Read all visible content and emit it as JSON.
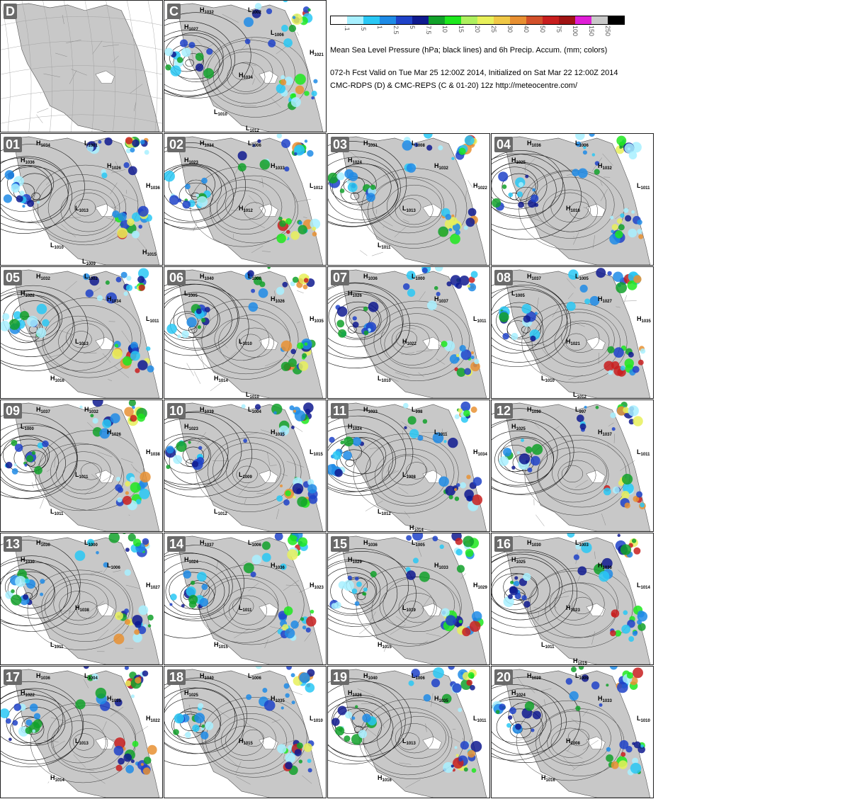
{
  "colorbar": {
    "colors": [
      "#ffffff",
      "#a8f0ff",
      "#29c8f5",
      "#1e8be6",
      "#1f42c8",
      "#0f1a8f",
      "#12a12a",
      "#1ee81e",
      "#aef05e",
      "#e8f05a",
      "#f0c846",
      "#e89032",
      "#d2502a",
      "#c81e1e",
      "#a01414",
      "#e01ed6",
      "#c8c8c8",
      "#000000"
    ],
    "ticks": [
      ".1",
      ".5",
      "1",
      "2.5",
      "5",
      "7.5",
      "10",
      "15",
      "20",
      "25",
      "30",
      "40",
      "50",
      "75",
      "100",
      "150",
      "250"
    ]
  },
  "title_line": "Mean Sea Level Pressure (hPa; black lines) and 6h Precip. Accum. (mm; colors)",
  "valid_line": "072-h Fcst Valid on Tue Mar 25 12:00Z 2014, Initialized on Sat Mar 22 12:00Z 2014",
  "source_line": "CMC-RDPS (D) & CMC-REPS (C & 01-20) 12z http://meteocentre.com/",
  "panels": [
    {
      "label": "D",
      "kind": "domain",
      "centers": []
    },
    {
      "label": "C",
      "kind": "forecast",
      "centers": [
        [
          "H",
          "1032"
        ],
        [
          "L",
          "1002"
        ],
        [
          "H",
          "1027"
        ],
        [
          "L",
          "1006"
        ],
        [
          "H",
          "1021"
        ],
        [
          "H",
          "1034"
        ],
        [
          "L",
          "1010"
        ],
        [
          "L",
          "1012"
        ]
      ]
    },
    {
      "label": "01",
      "kind": "forecast",
      "centers": [
        [
          "H",
          "1034"
        ],
        [
          "L",
          "1001"
        ],
        [
          "H",
          "1036"
        ],
        [
          "H",
          "1026"
        ],
        [
          "H",
          "1036"
        ],
        [
          "L",
          "1013"
        ],
        [
          "L",
          "1010"
        ],
        [
          "L",
          "1009"
        ],
        [
          "H",
          "1015"
        ]
      ]
    },
    {
      "label": "02",
      "kind": "forecast",
      "centers": [
        [
          "H",
          "1034"
        ],
        [
          "L",
          "1006"
        ],
        [
          "H",
          "1023"
        ],
        [
          "H",
          "1033"
        ],
        [
          "L",
          "1012"
        ],
        [
          "H",
          "1012"
        ]
      ]
    },
    {
      "label": "03",
      "kind": "forecast",
      "centers": [
        [
          "H",
          "1031"
        ],
        [
          "L",
          "1008"
        ],
        [
          "H",
          "1024"
        ],
        [
          "H",
          "1032"
        ],
        [
          "H",
          "1022"
        ],
        [
          "L",
          "1013"
        ],
        [
          "L",
          "1011"
        ]
      ]
    },
    {
      "label": "04",
      "kind": "forecast",
      "centers": [
        [
          "H",
          "1036"
        ],
        [
          "L",
          "1006"
        ],
        [
          "H",
          "1025"
        ],
        [
          "H",
          "1032"
        ],
        [
          "L",
          "1011"
        ],
        [
          "H",
          "1016"
        ]
      ]
    },
    {
      "label": "05",
      "kind": "forecast",
      "centers": [
        [
          "H",
          "1032"
        ],
        [
          "L",
          "1002"
        ],
        [
          "H",
          "1022"
        ],
        [
          "H",
          "1034"
        ],
        [
          "L",
          "1011"
        ],
        [
          "L",
          "1013"
        ],
        [
          "H",
          "1016"
        ]
      ]
    },
    {
      "label": "06",
      "kind": "forecast",
      "centers": [
        [
          "H",
          "1040"
        ],
        [
          "L",
          "1000"
        ],
        [
          "L",
          "1005"
        ],
        [
          "H",
          "1026"
        ],
        [
          "H",
          "1035"
        ],
        [
          "L",
          "1010"
        ],
        [
          "H",
          "1014"
        ],
        [
          "L",
          "1010"
        ]
      ]
    },
    {
      "label": "07",
      "kind": "forecast",
      "centers": [
        [
          "H",
          "1036"
        ],
        [
          "L",
          "1000"
        ],
        [
          "H",
          "1026"
        ],
        [
          "H",
          "1037"
        ],
        [
          "L",
          "1011"
        ],
        [
          "H",
          "1022"
        ],
        [
          "L",
          "1010"
        ]
      ]
    },
    {
      "label": "08",
      "kind": "forecast",
      "centers": [
        [
          "H",
          "1037"
        ],
        [
          "L",
          "1005"
        ],
        [
          "L",
          "1005"
        ],
        [
          "H",
          "1027"
        ],
        [
          "H",
          "1035"
        ],
        [
          "H",
          "1021"
        ],
        [
          "L",
          "1010"
        ],
        [
          "L",
          "1012"
        ]
      ]
    },
    {
      "label": "09",
      "kind": "forecast",
      "centers": [
        [
          "H",
          "1037"
        ],
        [
          "H",
          "1032"
        ],
        [
          "L",
          "1000"
        ],
        [
          "H",
          "1026"
        ],
        [
          "H",
          "1038"
        ],
        [
          "L",
          "1011"
        ],
        [
          "L",
          "1011"
        ]
      ]
    },
    {
      "label": "10",
      "kind": "forecast",
      "centers": [
        [
          "H",
          "1039"
        ],
        [
          "L",
          "1004"
        ],
        [
          "H",
          "1023"
        ],
        [
          "H",
          "1035"
        ],
        [
          "L",
          "1015"
        ],
        [
          "L",
          "1009"
        ],
        [
          "L",
          "1012"
        ]
      ]
    },
    {
      "label": "11",
      "kind": "forecast",
      "centers": [
        [
          "H",
          "1033"
        ],
        [
          "L",
          "998"
        ],
        [
          "H",
          "1024"
        ],
        [
          "L",
          "1011"
        ],
        [
          "H",
          "1034"
        ],
        [
          "L",
          "1008"
        ],
        [
          "L",
          "1012"
        ],
        [
          "H",
          "1014"
        ]
      ]
    },
    {
      "label": "12",
      "kind": "forecast",
      "centers": [
        [
          "H",
          "1030"
        ],
        [
          "L",
          "997"
        ],
        [
          "H",
          "1025"
        ],
        [
          "H",
          "1037"
        ],
        [
          "L",
          "1011"
        ]
      ]
    },
    {
      "label": "13",
      "kind": "forecast",
      "centers": [
        [
          "H",
          "1030"
        ],
        [
          "L",
          "1000"
        ],
        [
          "H",
          "1030"
        ],
        [
          "L",
          "1006"
        ],
        [
          "H",
          "1027"
        ],
        [
          "H",
          "1038"
        ],
        [
          "L",
          "1011"
        ]
      ]
    },
    {
      "label": "14",
      "kind": "forecast",
      "centers": [
        [
          "H",
          "1037"
        ],
        [
          "L",
          "1006"
        ],
        [
          "H",
          "1024"
        ],
        [
          "H",
          "1036"
        ],
        [
          "H",
          "1023"
        ],
        [
          "L",
          "1011"
        ],
        [
          "H",
          "1015"
        ]
      ]
    },
    {
      "label": "15",
      "kind": "forecast",
      "centers": [
        [
          "H",
          "1036"
        ],
        [
          "L",
          "1005"
        ],
        [
          "H",
          "1029"
        ],
        [
          "H",
          "1033"
        ],
        [
          "H",
          "1029"
        ],
        [
          "L",
          "1019"
        ],
        [
          "H",
          "1015"
        ]
      ]
    },
    {
      "label": "16",
      "kind": "forecast",
      "centers": [
        [
          "H",
          "1030"
        ],
        [
          "L",
          "1003"
        ],
        [
          "H",
          "1025"
        ],
        [
          "H",
          "1036"
        ],
        [
          "L",
          "1014"
        ],
        [
          "H",
          "1023"
        ],
        [
          "L",
          "1011"
        ],
        [
          "H",
          "1015"
        ]
      ]
    },
    {
      "label": "17",
      "kind": "forecast",
      "centers": [
        [
          "H",
          "1036"
        ],
        [
          "L",
          "1004"
        ],
        [
          "H",
          "1022"
        ],
        [
          "H",
          "1035"
        ],
        [
          "H",
          "1022"
        ],
        [
          "L",
          "1013"
        ],
        [
          "H",
          "1014"
        ]
      ]
    },
    {
      "label": "18",
      "kind": "forecast",
      "centers": [
        [
          "H",
          "1040"
        ],
        [
          "L",
          "1006"
        ],
        [
          "H",
          "1025"
        ],
        [
          "H",
          "1035"
        ],
        [
          "L",
          "1010"
        ],
        [
          "H",
          "1015"
        ]
      ]
    },
    {
      "label": "19",
      "kind": "forecast",
      "centers": [
        [
          "H",
          "1040"
        ],
        [
          "L",
          "1006"
        ],
        [
          "H",
          "1026"
        ],
        [
          "H",
          "1035"
        ],
        [
          "L",
          "1011"
        ],
        [
          "L",
          "1013"
        ],
        [
          "H",
          "1016"
        ]
      ]
    },
    {
      "label": "20",
      "kind": "forecast",
      "centers": [
        [
          "H",
          "1039"
        ],
        [
          "L",
          "1009"
        ],
        [
          "H",
          "1024"
        ],
        [
          "H",
          "1033"
        ],
        [
          "L",
          "1010"
        ],
        [
          "H",
          "1008"
        ],
        [
          "H",
          "1016"
        ]
      ]
    }
  ]
}
